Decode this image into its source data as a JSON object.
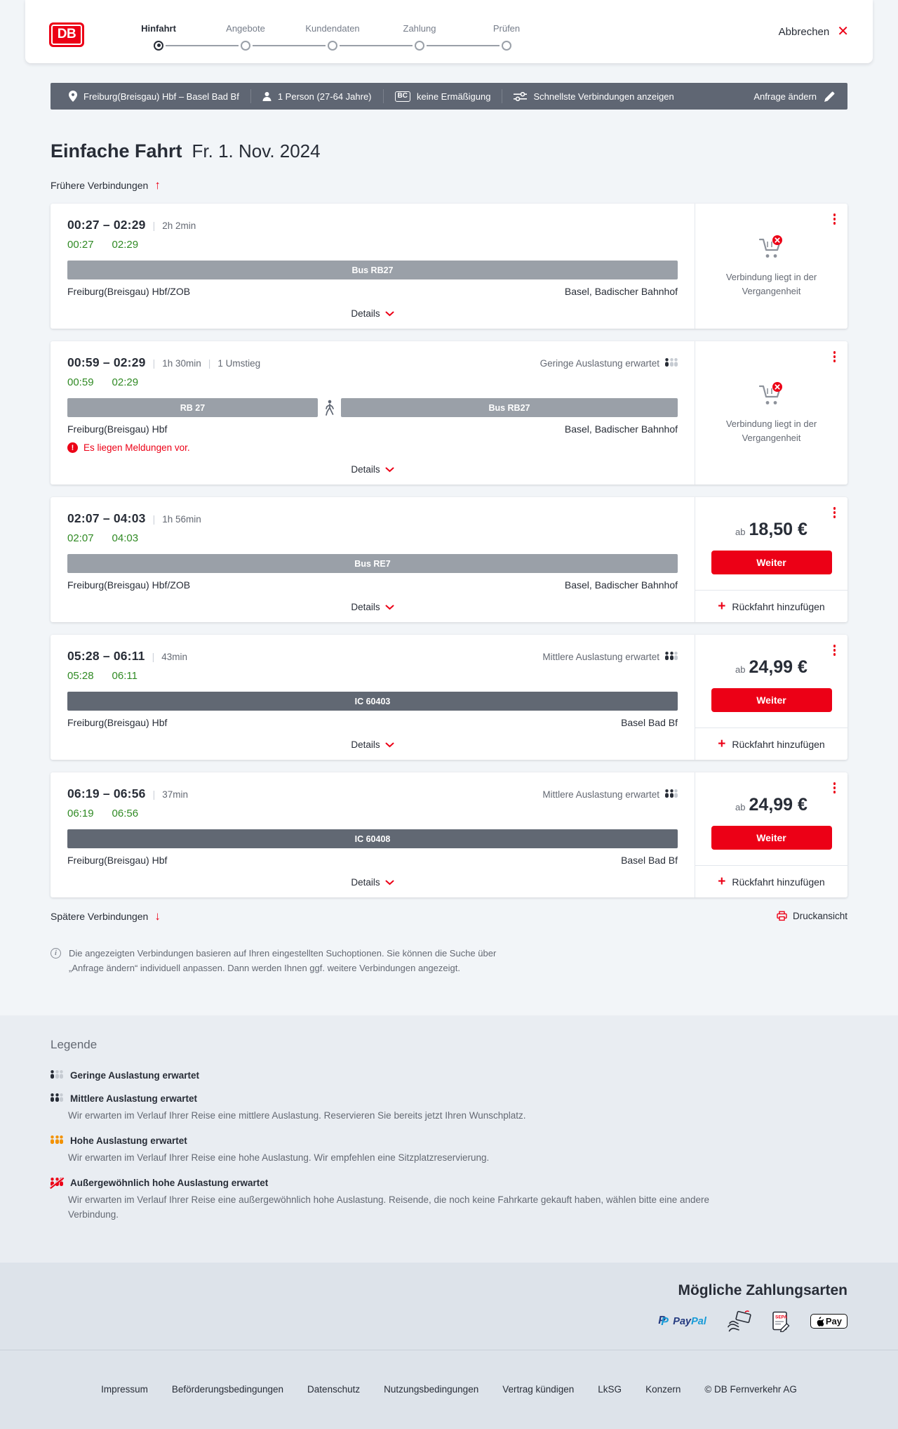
{
  "header": {
    "logo_text": "DB",
    "cancel_label": "Abbrechen",
    "steps": [
      {
        "label": "Hinfahrt",
        "active": true
      },
      {
        "label": "Angebote",
        "active": false
      },
      {
        "label": "Kundendaten",
        "active": false
      },
      {
        "label": "Zahlung",
        "active": false
      },
      {
        "label": "Prüfen",
        "active": false
      }
    ]
  },
  "summary_bar": {
    "route": "Freiburg(Breisgau) Hbf – Basel Bad Bf",
    "passengers": "1 Person (27-64 Jahre)",
    "bahncard_badge": "BC",
    "discount": "keine Ermäßigung",
    "fastest_connections": "Schnellste Verbindungen anzeigen",
    "change_request": "Anfrage ändern"
  },
  "results": {
    "trip_type": "Einfache Fahrt",
    "date": "Fr. 1. Nov. 2024",
    "earlier_label": "Frühere Verbindungen",
    "later_label": "Spätere Verbindungen",
    "print_label": "Druckansicht",
    "details_label": "Details",
    "info_note": "Die angezeigten Verbindungen basieren auf Ihren eingestellten Suchoptionen. Sie können die Suche über „Anfrage ändern“ individuell anpassen. Dann werden Ihnen ggf. weitere Verbindungen angezeigt."
  },
  "connections": [
    {
      "time_range": "00:27 – 02:29",
      "duration": "2h 2min",
      "transfers": null,
      "occupancy": null,
      "departure": "00:27",
      "arrival": "02:29",
      "segments": [
        {
          "kind": "bar",
          "label": "Bus RB27",
          "style": "light",
          "grow": 100
        }
      ],
      "from": "Freiburg(Breisgau) Hbf/ZOB",
      "to": "Basel, Badischer Bahnhof",
      "warning": null,
      "panel": {
        "type": "past",
        "message": "Verbindung liegt in der Vergangenheit"
      }
    },
    {
      "time_range": "00:59 – 02:29",
      "duration": "1h 30min",
      "transfers": "1 Umstieg",
      "occupancy": {
        "label": "Geringe Auslastung erwartet",
        "level": "low"
      },
      "departure": "00:59",
      "arrival": "02:29",
      "segments": [
        {
          "kind": "bar",
          "label": "RB 27",
          "style": "light",
          "grow": 42
        },
        {
          "kind": "walk"
        },
        {
          "kind": "bar",
          "label": "Bus RB27",
          "style": "light",
          "grow": 55
        }
      ],
      "from": "Freiburg(Breisgau) Hbf",
      "to": "Basel, Badischer Bahnhof",
      "warning": "Es liegen Meldungen vor.",
      "panel": {
        "type": "past",
        "message": "Verbindung liegt in der Vergangenheit"
      }
    },
    {
      "time_range": "02:07 – 04:03",
      "duration": "1h 56min",
      "transfers": null,
      "occupancy": null,
      "departure": "02:07",
      "arrival": "04:03",
      "segments": [
        {
          "kind": "bar",
          "label": "Bus RE7",
          "style": "light",
          "grow": 100
        }
      ],
      "from": "Freiburg(Breisgau) Hbf/ZOB",
      "to": "Basel, Badischer Bahnhof",
      "warning": null,
      "panel": {
        "type": "price",
        "prefix": "ab",
        "price": "18,50 €",
        "cta": "Weiter",
        "add_return": "Rückfahrt hinzufügen"
      }
    },
    {
      "time_range": "05:28 – 06:11",
      "duration": "43min",
      "transfers": null,
      "occupancy": {
        "label": "Mittlere Auslastung erwartet",
        "level": "medium"
      },
      "departure": "05:28",
      "arrival": "06:11",
      "segments": [
        {
          "kind": "bar",
          "label": "IC 60403",
          "style": "dark",
          "grow": 100
        }
      ],
      "from": "Freiburg(Breisgau) Hbf",
      "to": "Basel Bad Bf",
      "warning": null,
      "panel": {
        "type": "price",
        "prefix": "ab",
        "price": "24,99 €",
        "cta": "Weiter",
        "add_return": "Rückfahrt hinzufügen"
      }
    },
    {
      "time_range": "06:19 – 06:56",
      "duration": "37min",
      "transfers": null,
      "occupancy": {
        "label": "Mittlere Auslastung erwartet",
        "level": "medium"
      },
      "departure": "06:19",
      "arrival": "06:56",
      "segments": [
        {
          "kind": "bar",
          "label": "IC 60408",
          "style": "dark",
          "grow": 100
        }
      ],
      "from": "Freiburg(Breisgau) Hbf",
      "to": "Basel Bad Bf",
      "warning": null,
      "panel": {
        "type": "price",
        "prefix": "ab",
        "price": "24,99 €",
        "cta": "Weiter",
        "add_return": "Rückfahrt hinzufügen"
      }
    }
  ],
  "legend": {
    "title": "Legende",
    "items": [
      {
        "level": "low",
        "label": "Geringe Auslastung erwartet",
        "description": null
      },
      {
        "level": "medium",
        "label": "Mittlere Auslastung erwartet",
        "description": "Wir erwarten im Verlauf Ihrer Reise eine mittlere Auslastung. Reservieren Sie bereits jetzt Ihren Wunschplatz."
      },
      {
        "level": "high",
        "label": "Hohe Auslastung erwartet",
        "description": "Wir erwarten im Verlauf Ihrer Reise eine hohe Auslastung. Wir empfehlen eine Sitzplatzreservierung."
      },
      {
        "level": "exceptional",
        "label": "Außergewöhnlich hohe Auslastung erwartet",
        "description": "Wir erwarten im Verlauf Ihrer Reise eine außergewöhnlich hohe Auslastung. Reisende, die noch keine Fahrkarte gekauft haben, wählen bitte eine andere Verbindung."
      }
    ]
  },
  "payments": {
    "title": "Mögliche Zahlungsarten",
    "methods": [
      "PayPal",
      "Kreditkarte",
      "SEPA-Lastschrift",
      "Apple Pay"
    ],
    "applepay_label": "Pay"
  },
  "footer": {
    "links": [
      "Impressum",
      "Beförderungsbedingungen",
      "Datenschutz",
      "Nutzungsbedingungen",
      "Vertrag kündigen",
      "LkSG",
      "Konzern"
    ],
    "copyright": "© DB Fernverkehr AG"
  },
  "colors": {
    "brand_red": "#ec0016",
    "dark_text": "#282d37",
    "summary_bar_bg": "#5f6673",
    "green_time": "#308a24",
    "segment_light": "#9aa0a8",
    "segment_dark": "#616873",
    "occupancy_orange": "#f39200"
  }
}
